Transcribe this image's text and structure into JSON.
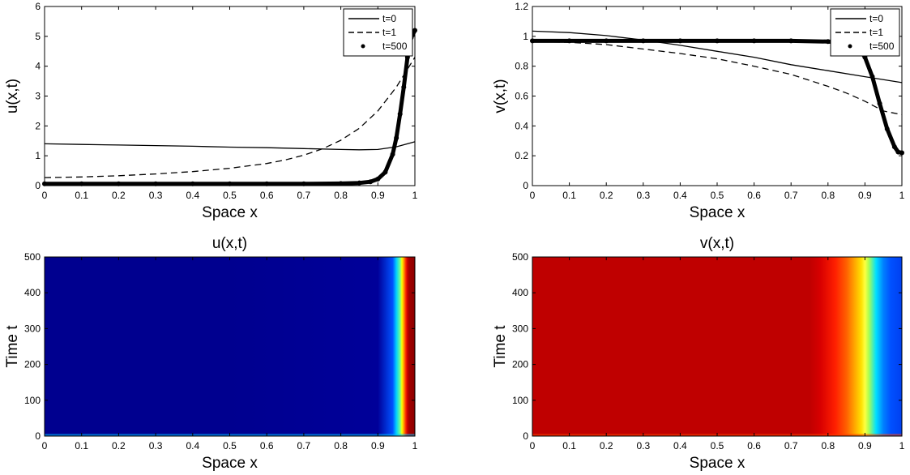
{
  "chart_data": [
    {
      "id": "plot_u",
      "type": "line",
      "title": "",
      "xlabel": "Space x",
      "ylabel": "u(x,t)",
      "xlim": [
        0,
        1
      ],
      "ylim": [
        0,
        6
      ],
      "xticks": [
        0,
        0.1,
        0.2,
        0.3,
        0.4,
        0.5,
        0.6,
        0.7,
        0.8,
        0.9,
        1
      ],
      "xtick_labels": [
        "0",
        "0.1",
        "0.2",
        "0.3",
        "0.4",
        "0.5",
        "0.6",
        "0.7",
        "0.8",
        "0.9",
        "1"
      ],
      "yticks": [
        0,
        1,
        2,
        3,
        4,
        5,
        6
      ],
      "ytick_labels": [
        "0",
        "1",
        "2",
        "3",
        "4",
        "5",
        "6"
      ],
      "legend_position": "top-right",
      "series": [
        {
          "name": "t=0",
          "style": "solid",
          "x": [
            0,
            0.1,
            0.2,
            0.3,
            0.4,
            0.5,
            0.6,
            0.7,
            0.8,
            0.85,
            0.9,
            0.95,
            1.0
          ],
          "y": [
            1.4,
            1.38,
            1.36,
            1.34,
            1.32,
            1.29,
            1.27,
            1.24,
            1.21,
            1.2,
            1.21,
            1.3,
            1.47
          ]
        },
        {
          "name": "t=1",
          "style": "dashed",
          "x": [
            0,
            0.1,
            0.2,
            0.3,
            0.4,
            0.5,
            0.6,
            0.65,
            0.7,
            0.75,
            0.8,
            0.85,
            0.9,
            0.95,
            1.0
          ],
          "y": [
            0.27,
            0.29,
            0.33,
            0.39,
            0.47,
            0.58,
            0.74,
            0.86,
            1.02,
            1.23,
            1.52,
            1.92,
            2.5,
            3.3,
            4.3
          ]
        },
        {
          "name": "t=500",
          "style": "markers",
          "x": [
            0,
            0.1,
            0.2,
            0.3,
            0.4,
            0.5,
            0.6,
            0.7,
            0.8,
            0.85,
            0.88,
            0.9,
            0.92,
            0.94,
            0.95,
            0.96,
            0.97,
            0.98,
            0.99,
            1.0
          ],
          "y": [
            0.06,
            0.06,
            0.06,
            0.06,
            0.06,
            0.06,
            0.06,
            0.06,
            0.07,
            0.09,
            0.13,
            0.22,
            0.45,
            1.05,
            1.6,
            2.4,
            3.3,
            4.3,
            4.95,
            5.2
          ]
        }
      ]
    },
    {
      "id": "plot_v",
      "type": "line",
      "title": "",
      "xlabel": "Space x",
      "ylabel": "v(x,t)",
      "xlim": [
        0,
        1
      ],
      "ylim": [
        0,
        1.2
      ],
      "xticks": [
        0,
        0.1,
        0.2,
        0.3,
        0.4,
        0.5,
        0.6,
        0.7,
        0.8,
        0.9,
        1
      ],
      "xtick_labels": [
        "0",
        "0.1",
        "0.2",
        "0.3",
        "0.4",
        "0.5",
        "0.6",
        "0.7",
        "0.8",
        "0.9",
        "1"
      ],
      "yticks": [
        0,
        0.2,
        0.4,
        0.6,
        0.8,
        1,
        1.2
      ],
      "ytick_labels": [
        "0",
        "0.2",
        "0.4",
        "0.6",
        "0.8",
        "1",
        "1.2"
      ],
      "legend_position": "top-right",
      "series": [
        {
          "name": "t=0",
          "style": "solid",
          "x": [
            0,
            0.1,
            0.2,
            0.3,
            0.4,
            0.5,
            0.6,
            0.7,
            0.8,
            0.9,
            1.0
          ],
          "y": [
            1.035,
            1.025,
            1.005,
            0.975,
            0.94,
            0.9,
            0.86,
            0.81,
            0.77,
            0.73,
            0.69
          ]
        },
        {
          "name": "t=1",
          "style": "dashed",
          "x": [
            0,
            0.1,
            0.2,
            0.3,
            0.4,
            0.5,
            0.6,
            0.7,
            0.8,
            0.85,
            0.9,
            0.95,
            1.0
          ],
          "y": [
            0.965,
            0.96,
            0.945,
            0.915,
            0.885,
            0.85,
            0.8,
            0.745,
            0.665,
            0.62,
            0.565,
            0.5,
            0.475
          ]
        },
        {
          "name": "t=500",
          "style": "markers",
          "x": [
            0,
            0.1,
            0.2,
            0.3,
            0.4,
            0.5,
            0.6,
            0.7,
            0.8,
            0.85,
            0.88,
            0.9,
            0.92,
            0.94,
            0.96,
            0.98,
            0.99,
            1.0
          ],
          "y": [
            0.97,
            0.97,
            0.97,
            0.97,
            0.97,
            0.97,
            0.97,
            0.97,
            0.965,
            0.955,
            0.93,
            0.86,
            0.73,
            0.55,
            0.38,
            0.26,
            0.225,
            0.22
          ]
        }
      ]
    },
    {
      "id": "heat_u",
      "type": "heatmap",
      "title": "u(x,t)",
      "xlabel": "Space x",
      "ylabel": "Time t",
      "xlim": [
        0,
        1
      ],
      "ylim": [
        0,
        500
      ],
      "xticks": [
        0,
        0.1,
        0.2,
        0.3,
        0.4,
        0.5,
        0.6,
        0.7,
        0.8,
        0.9,
        1
      ],
      "xtick_labels": [
        "0",
        "0.1",
        "0.2",
        "0.3",
        "0.4",
        "0.5",
        "0.6",
        "0.7",
        "0.8",
        "0.9",
        "1"
      ],
      "yticks": [
        0,
        100,
        200,
        300,
        400,
        500
      ],
      "ytick_labels": [
        "0",
        "100",
        "200",
        "300",
        "400",
        "500"
      ],
      "colormap": "jet",
      "x_profile": [
        0,
        0.5,
        0.9,
        0.94,
        0.95,
        0.96,
        0.965,
        0.97,
        0.975,
        0.98,
        0.985,
        1.0
      ],
      "color_profile": [
        "#00008f",
        "#00008f",
        "#000099",
        "#0050ff",
        "#00d0ff",
        "#70ff90",
        "#ffff00",
        "#ffa000",
        "#ff3000",
        "#c80000",
        "#a00000",
        "#8c0000"
      ]
    },
    {
      "id": "heat_v",
      "type": "heatmap",
      "title": "v(x,t)",
      "xlabel": "Space x",
      "ylabel": "Time t",
      "xlim": [
        0,
        1
      ],
      "ylim": [
        0,
        500
      ],
      "xticks": [
        0,
        0.1,
        0.2,
        0.3,
        0.4,
        0.5,
        0.6,
        0.7,
        0.8,
        0.9,
        1
      ],
      "xtick_labels": [
        "0",
        "0.1",
        "0.2",
        "0.3",
        "0.4",
        "0.5",
        "0.6",
        "0.7",
        "0.8",
        "0.9",
        "1"
      ],
      "yticks": [
        0,
        100,
        200,
        300,
        400,
        500
      ],
      "ytick_labels": [
        "0",
        "100",
        "200",
        "300",
        "400",
        "500"
      ],
      "colormap": "jet",
      "x_profile": [
        0,
        0.75,
        0.78,
        0.82,
        0.85,
        0.87,
        0.89,
        0.9,
        0.91,
        0.93,
        0.95,
        0.97,
        1.0
      ],
      "color_profile": [
        "#bf0000",
        "#bf0000",
        "#d80000",
        "#ff2000",
        "#ff6000",
        "#ffa000",
        "#ffe000",
        "#ffff40",
        "#b0ff50",
        "#00e0ff",
        "#0080ff",
        "#0050ff",
        "#0040f0"
      ]
    }
  ]
}
